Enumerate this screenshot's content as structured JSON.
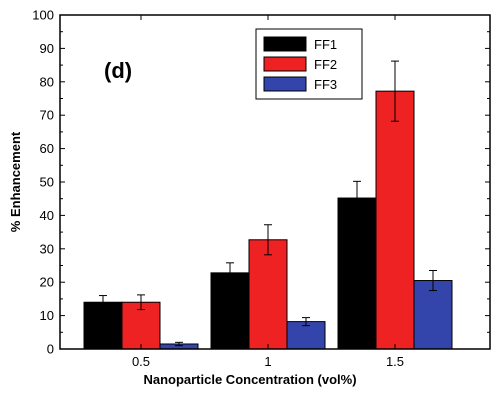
{
  "chart_data": {
    "type": "bar",
    "panel_label": "(d)",
    "categories": [
      "0.5",
      "1",
      "1.5"
    ],
    "series": [
      {
        "name": "FF1",
        "values": [
          14,
          22.8,
          45.2
        ],
        "errors": [
          2,
          3,
          5
        ],
        "color": "#000000"
      },
      {
        "name": "FF2",
        "values": [
          14,
          32.7,
          77.2
        ],
        "errors": [
          2.2,
          4.5,
          9
        ],
        "color": "#ee2222"
      },
      {
        "name": "FF3",
        "values": [
          1.5,
          8.2,
          20.5
        ],
        "errors": [
          0.5,
          1.2,
          3
        ],
        "color": "#3344aa"
      }
    ],
    "xlabel": "Nanoparticle Concentration (vol%)",
    "ylabel": "% Enhancement",
    "ylim": [
      0,
      100
    ],
    "yticks": [
      0,
      10,
      20,
      30,
      40,
      50,
      60,
      70,
      80,
      90,
      100
    ],
    "legend_position": "top-center",
    "grid": false
  }
}
